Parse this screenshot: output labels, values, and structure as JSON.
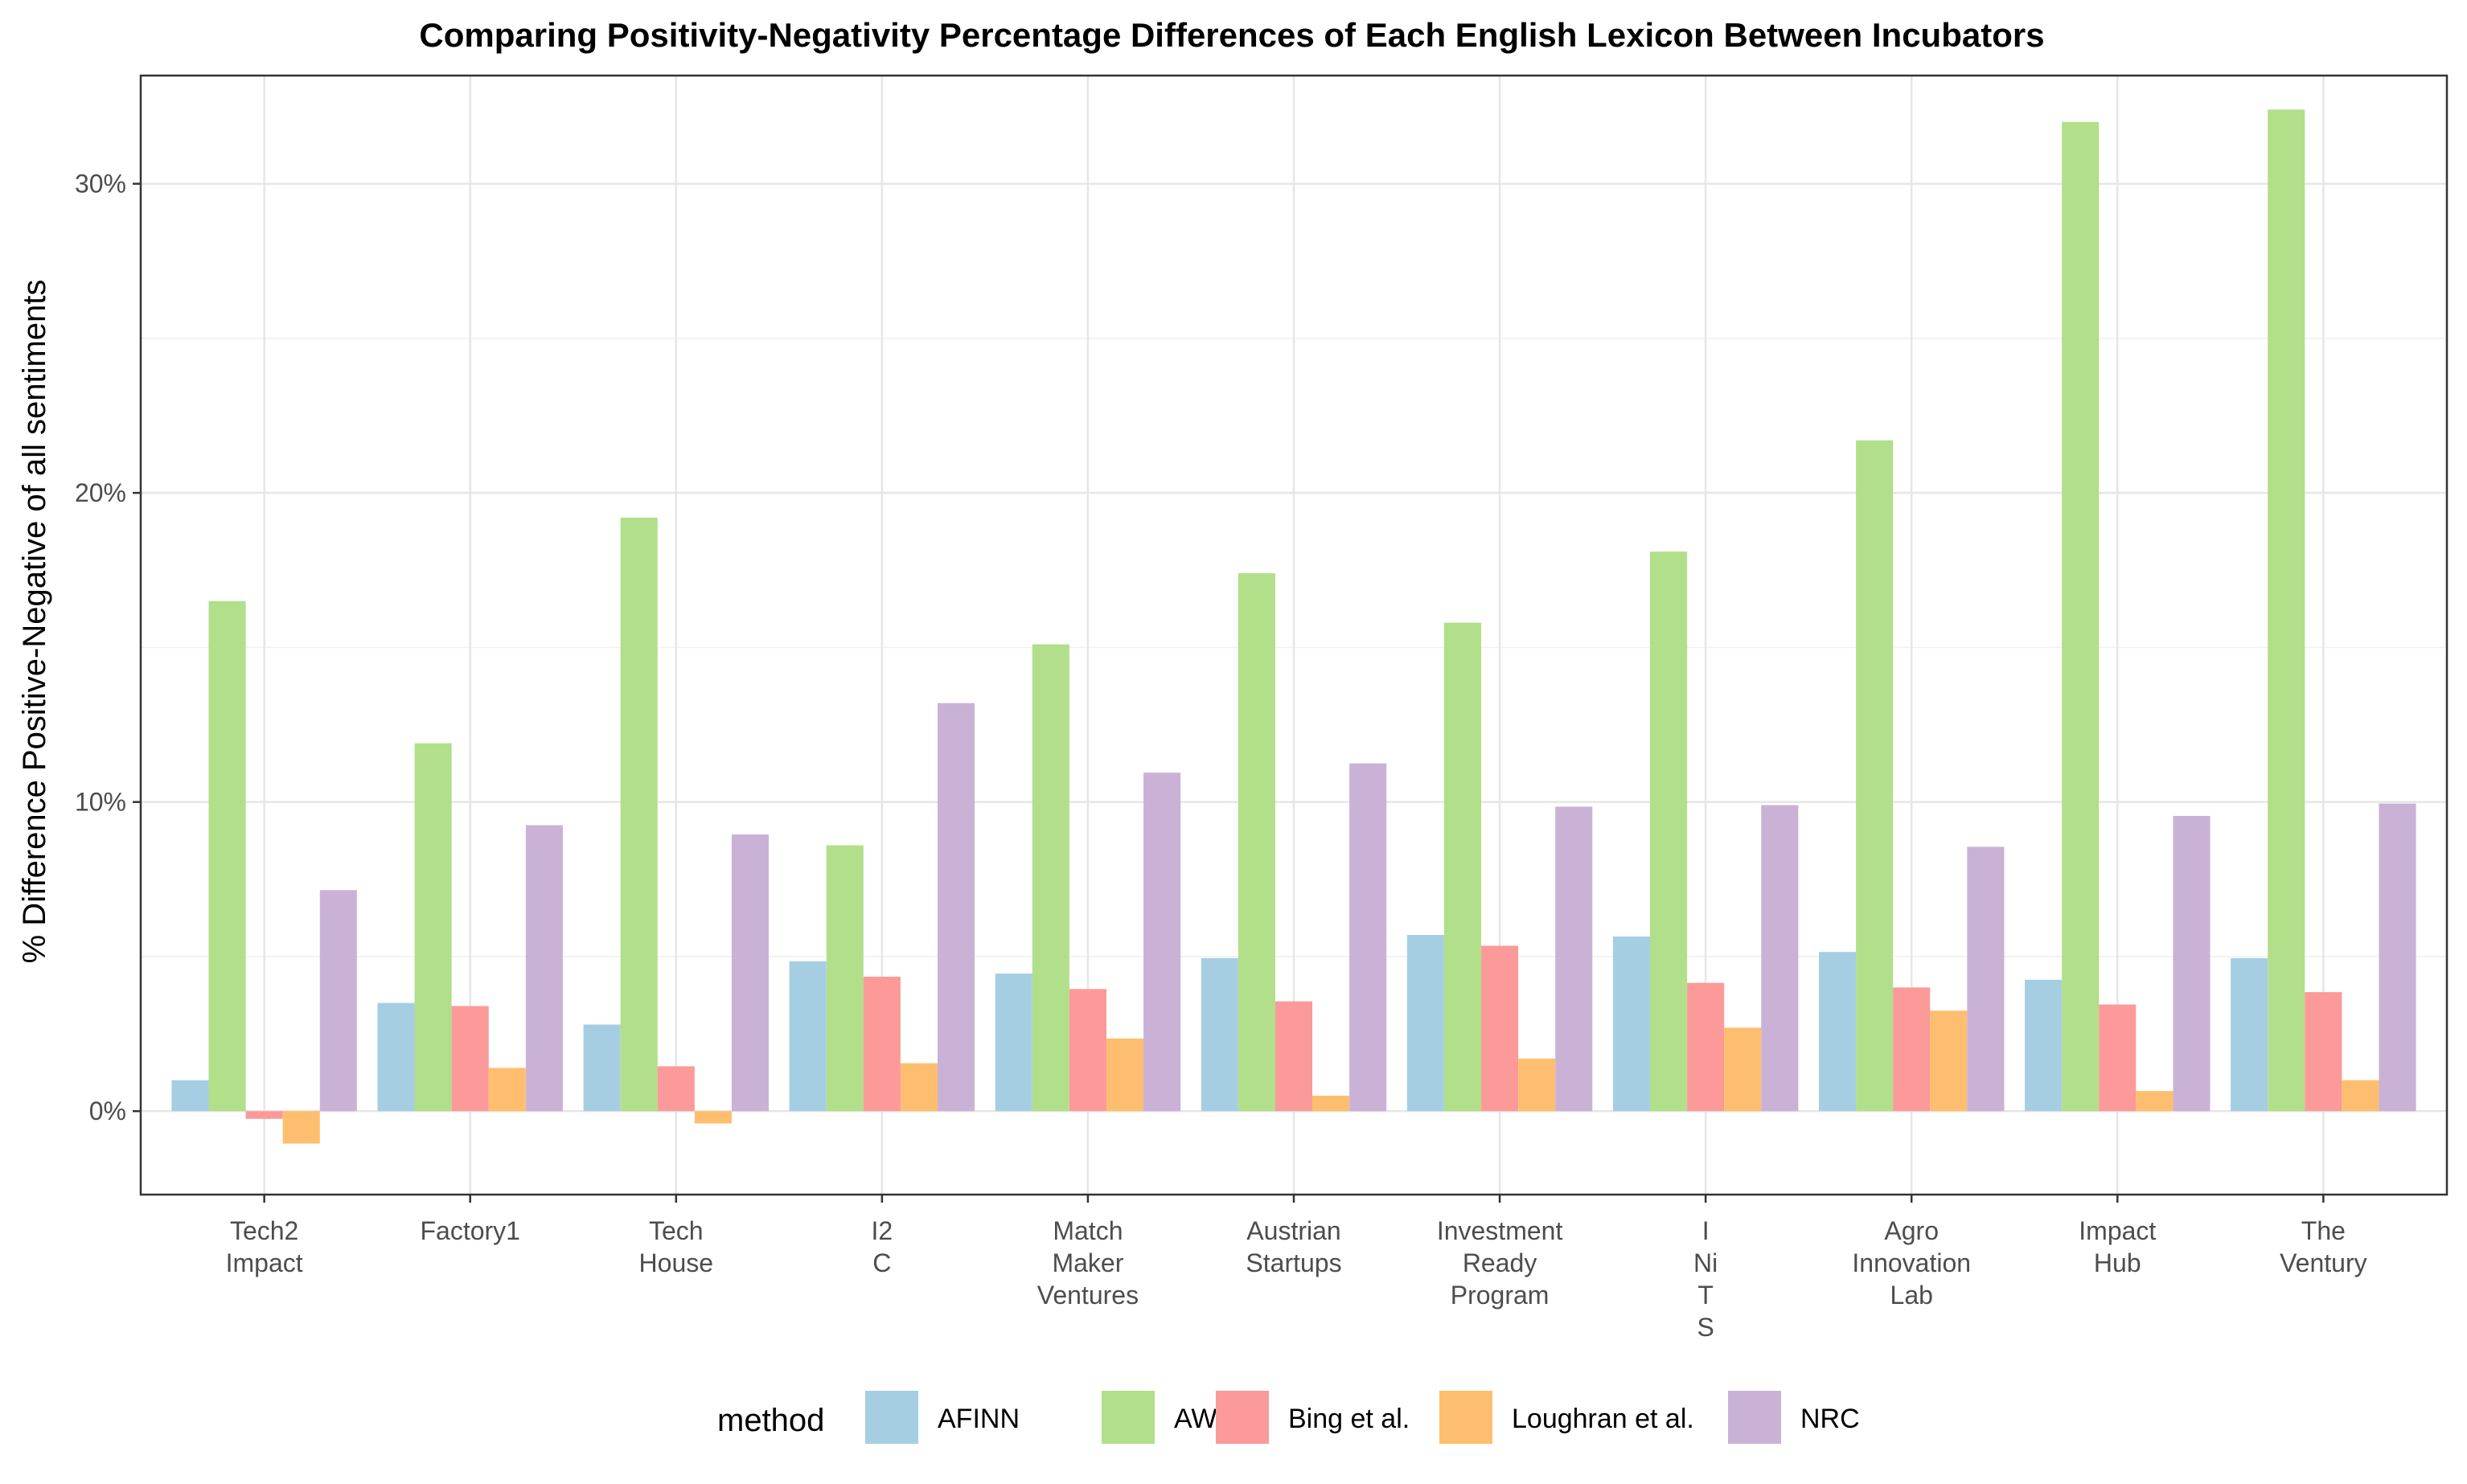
{
  "chart_data": {
    "type": "bar",
    "title": "Comparing Positivity-Negativity Percentage Differences of Each English Lexicon Between Incubators",
    "xlabel": "",
    "ylabel": "% Difference Positive-Negative of all sentiments",
    "ylim": [
      -2.7,
      33.5
    ],
    "yticks": [
      0,
      10,
      20,
      30
    ],
    "ytick_labels": [
      "0%",
      "10%",
      "20%",
      "30%"
    ],
    "grid": true,
    "legend_title": "method",
    "legend_position": "bottom",
    "categories": [
      [
        "Tech2",
        "Impact"
      ],
      [
        "Factory1"
      ],
      [
        "Tech",
        "House"
      ],
      [
        "I2",
        "C"
      ],
      [
        "Match",
        "Maker",
        "Ventures"
      ],
      [
        "Austrian",
        "Startups"
      ],
      [
        "Investment",
        "Ready",
        "Program"
      ],
      [
        "I",
        "Ni",
        "T",
        "S"
      ],
      [
        "Agro",
        "Innovation",
        "Lab"
      ],
      [
        "Impact",
        "Hub"
      ],
      [
        "The",
        "Ventury"
      ]
    ],
    "series": [
      {
        "name": "AFINN",
        "color": "#a6cee3",
        "values": [
          1.0,
          3.5,
          2.8,
          4.85,
          4.45,
          4.95,
          5.7,
          5.65,
          5.15,
          4.25,
          4.95
        ]
      },
      {
        "name": "AWS",
        "color": "#b2df8a",
        "values": [
          16.5,
          11.9,
          19.2,
          8.6,
          15.1,
          17.4,
          15.8,
          18.1,
          21.7,
          32.0,
          32.4
        ]
      },
      {
        "name": "Bing et al.",
        "color": "#fb9a99",
        "values": [
          -0.25,
          3.4,
          1.45,
          4.35,
          3.95,
          3.55,
          5.35,
          4.15,
          4.0,
          3.45,
          3.85
        ]
      },
      {
        "name": "Loughran et al.",
        "color": "#fdbf6f",
        "values": [
          -1.05,
          1.4,
          -0.4,
          1.55,
          2.35,
          0.5,
          1.7,
          2.7,
          3.25,
          0.65,
          1.0
        ]
      },
      {
        "name": "NRC",
        "color": "#cab2d6",
        "values": [
          7.15,
          9.25,
          8.95,
          13.2,
          10.95,
          11.25,
          9.85,
          9.9,
          8.55,
          9.55,
          9.95
        ]
      }
    ]
  }
}
